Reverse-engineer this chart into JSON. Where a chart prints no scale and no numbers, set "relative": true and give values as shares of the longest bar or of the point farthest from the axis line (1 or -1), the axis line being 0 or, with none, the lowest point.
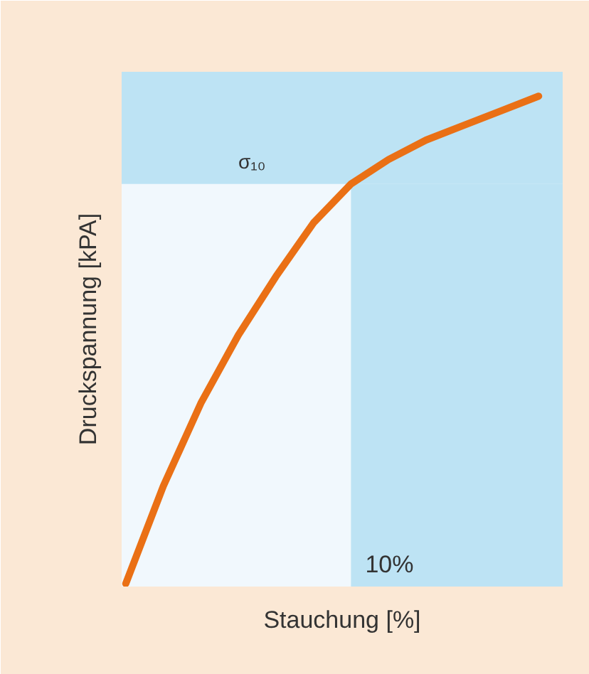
{
  "chart_data": {
    "type": "line",
    "relative": true,
    "xlabel": "Stauchung [%]",
    "ylabel": "Druckspannung [kPA]",
    "tick_labels": false,
    "line_style": "solid",
    "categories": [
      null,
      null,
      null,
      null,
      null,
      null,
      null,
      null,
      null,
      null,
      null,
      null
    ],
    "series": [
      {
        "color": "#ea7015",
        "values": [
          0,
          0.2,
          0.37,
          0.51,
          0.63,
          0.74,
          0.82,
          0.87,
          0.91,
          0.94,
          0.97,
          1
        ]
      }
    ],
    "bands": [
      {
        "axis": "y",
        "from": 0.82,
        "to": 1.05,
        "label": "σ₁₀",
        "color": "#bde3f4"
      }
    ],
    "annotations": [
      "10%"
    ]
  }
}
